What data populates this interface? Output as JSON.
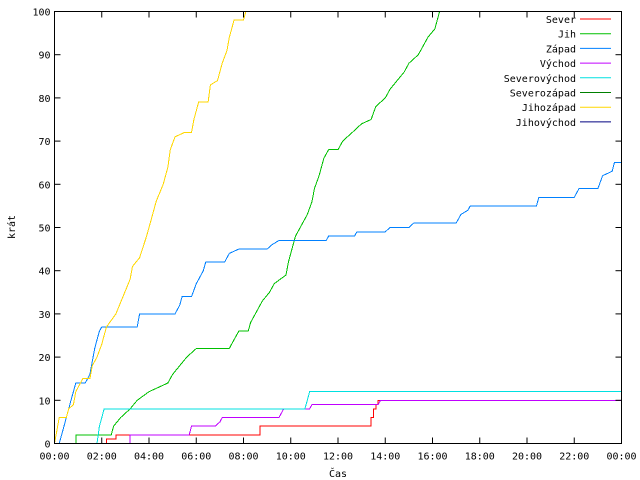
{
  "chart_data": {
    "type": "line",
    "title": "",
    "xlabel": "Čas",
    "ylabel": "krát",
    "xlim": [
      0,
      24
    ],
    "ylim": [
      0,
      100
    ],
    "x_unit": "hours",
    "x_ticks": [
      {
        "value": 0,
        "label": "00:00"
      },
      {
        "value": 2,
        "label": "02:00"
      },
      {
        "value": 4,
        "label": "04:00"
      },
      {
        "value": 6,
        "label": "06:00"
      },
      {
        "value": 8,
        "label": "08:00"
      },
      {
        "value": 10,
        "label": "10:00"
      },
      {
        "value": 12,
        "label": "12:00"
      },
      {
        "value": 14,
        "label": "14:00"
      },
      {
        "value": 16,
        "label": "16:00"
      },
      {
        "value": 18,
        "label": "18:00"
      },
      {
        "value": 20,
        "label": "20:00"
      },
      {
        "value": 22,
        "label": "22:00"
      },
      {
        "value": 24,
        "label": "00:00"
      }
    ],
    "y_ticks": [
      0,
      10,
      20,
      30,
      40,
      50,
      60,
      70,
      80,
      90,
      100
    ],
    "grid": false,
    "legend_position": "top-right",
    "step": true,
    "series": [
      {
        "name": "Sever",
        "color": "#ff0000",
        "points": [
          [
            2.2,
            0
          ],
          [
            2.2,
            1
          ],
          [
            2.6,
            1
          ],
          [
            2.6,
            2
          ],
          [
            8.7,
            2
          ],
          [
            8.7,
            4
          ],
          [
            13.4,
            4
          ],
          [
            13.4,
            6
          ],
          [
            13.5,
            6
          ],
          [
            13.5,
            8
          ],
          [
            13.6,
            8
          ],
          [
            13.6,
            9
          ],
          [
            13.7,
            9
          ],
          [
            13.7,
            10
          ],
          [
            24,
            10
          ]
        ]
      },
      {
        "name": "Jih",
        "color": "#00c000",
        "points": [
          [
            0.9,
            0
          ],
          [
            0.9,
            2
          ],
          [
            2.4,
            2
          ],
          [
            2.5,
            4
          ],
          [
            2.8,
            6
          ],
          [
            3.2,
            8
          ],
          [
            3.5,
            10
          ],
          [
            4.0,
            12
          ],
          [
            4.8,
            14
          ],
          [
            5.0,
            16
          ],
          [
            5.3,
            18
          ],
          [
            5.6,
            20
          ],
          [
            6.0,
            22
          ],
          [
            7.4,
            22
          ],
          [
            7.6,
            24
          ],
          [
            7.8,
            26
          ],
          [
            8.2,
            26
          ],
          [
            8.3,
            28
          ],
          [
            8.5,
            30
          ],
          [
            8.8,
            33
          ],
          [
            9.1,
            35
          ],
          [
            9.3,
            37
          ],
          [
            9.8,
            39
          ],
          [
            9.9,
            42
          ],
          [
            10.1,
            46
          ],
          [
            10.2,
            48
          ],
          [
            10.4,
            50
          ],
          [
            10.7,
            53
          ],
          [
            10.9,
            56
          ],
          [
            11.0,
            59
          ],
          [
            11.2,
            62
          ],
          [
            11.4,
            66
          ],
          [
            11.6,
            68
          ],
          [
            12.0,
            68
          ],
          [
            12.2,
            70
          ],
          [
            12.6,
            72
          ],
          [
            13.0,
            74
          ],
          [
            13.4,
            75
          ],
          [
            13.6,
            78
          ],
          [
            14.0,
            80
          ],
          [
            14.2,
            82
          ],
          [
            14.5,
            84
          ],
          [
            14.8,
            86
          ],
          [
            15.0,
            88
          ],
          [
            15.4,
            90
          ],
          [
            15.6,
            92
          ],
          [
            15.8,
            94
          ],
          [
            16.1,
            96
          ],
          [
            16.3,
            100
          ]
        ]
      },
      {
        "name": "Západ",
        "color": "#0080ff",
        "points": [
          [
            0.2,
            0
          ],
          [
            0.3,
            2
          ],
          [
            0.4,
            4
          ],
          [
            0.5,
            6
          ],
          [
            0.6,
            8
          ],
          [
            0.7,
            10
          ],
          [
            0.8,
            12
          ],
          [
            0.9,
            14
          ],
          [
            1.3,
            14
          ],
          [
            1.5,
            16
          ],
          [
            1.6,
            19
          ],
          [
            1.7,
            22
          ],
          [
            1.8,
            24
          ],
          [
            1.9,
            26
          ],
          [
            2.0,
            27
          ],
          [
            3.5,
            27
          ],
          [
            3.6,
            30
          ],
          [
            5.1,
            30
          ],
          [
            5.3,
            32
          ],
          [
            5.4,
            34
          ],
          [
            5.8,
            34
          ],
          [
            6.0,
            37
          ],
          [
            6.3,
            40
          ],
          [
            6.4,
            42
          ],
          [
            7.2,
            42
          ],
          [
            7.4,
            44
          ],
          [
            7.8,
            45
          ],
          [
            9.0,
            45
          ],
          [
            9.2,
            46
          ],
          [
            9.5,
            47
          ],
          [
            11.5,
            47
          ],
          [
            11.6,
            48
          ],
          [
            12.7,
            48
          ],
          [
            12.8,
            49
          ],
          [
            14.0,
            49
          ],
          [
            14.2,
            50
          ],
          [
            15.0,
            50
          ],
          [
            15.2,
            51
          ],
          [
            17.0,
            51
          ],
          [
            17.2,
            53
          ],
          [
            17.5,
            54
          ],
          [
            17.6,
            55
          ],
          [
            20.4,
            55
          ],
          [
            20.5,
            57
          ],
          [
            22.0,
            57
          ],
          [
            22.2,
            59
          ],
          [
            23.0,
            59
          ],
          [
            23.2,
            62
          ],
          [
            23.6,
            63
          ],
          [
            23.7,
            65
          ],
          [
            24,
            65
          ]
        ]
      },
      {
        "name": "Východ",
        "color": "#c000ff",
        "points": [
          [
            3.2,
            0
          ],
          [
            3.2,
            2
          ],
          [
            5.7,
            2
          ],
          [
            5.8,
            4
          ],
          [
            6.8,
            4
          ],
          [
            7.0,
            5
          ],
          [
            7.1,
            6
          ],
          [
            9.5,
            6
          ],
          [
            9.7,
            8
          ],
          [
            10.8,
            8
          ],
          [
            10.9,
            9
          ],
          [
            13.7,
            9
          ],
          [
            13.8,
            10
          ],
          [
            24,
            10
          ]
        ]
      },
      {
        "name": "Severovýchod",
        "color": "#00e0e0",
        "points": [
          [
            1.8,
            0
          ],
          [
            1.9,
            4
          ],
          [
            2.0,
            6
          ],
          [
            2.1,
            8
          ],
          [
            10.6,
            8
          ],
          [
            10.7,
            10
          ],
          [
            10.8,
            12
          ],
          [
            24,
            12
          ]
        ]
      },
      {
        "name": "Severozápad",
        "color": "#008000",
        "points": []
      },
      {
        "name": "Jihozápad",
        "color": "#ffd700",
        "points": [
          [
            0,
            0
          ],
          [
            0.1,
            3
          ],
          [
            0.2,
            6
          ],
          [
            0.5,
            6
          ],
          [
            0.6,
            8
          ],
          [
            0.8,
            9
          ],
          [
            0.9,
            12
          ],
          [
            1.0,
            13
          ],
          [
            1.2,
            15
          ],
          [
            1.5,
            15
          ],
          [
            1.6,
            18
          ],
          [
            1.8,
            20
          ],
          [
            2.0,
            23
          ],
          [
            2.1,
            25
          ],
          [
            2.2,
            27
          ],
          [
            2.6,
            30
          ],
          [
            2.9,
            34
          ],
          [
            3.2,
            38
          ],
          [
            3.3,
            41
          ],
          [
            3.6,
            43
          ],
          [
            3.9,
            48
          ],
          [
            4.1,
            52
          ],
          [
            4.3,
            56
          ],
          [
            4.6,
            60
          ],
          [
            4.8,
            64
          ],
          [
            4.9,
            68
          ],
          [
            5.1,
            71
          ],
          [
            5.5,
            72
          ],
          [
            5.8,
            72
          ],
          [
            5.9,
            75
          ],
          [
            6.1,
            79
          ],
          [
            6.5,
            79
          ],
          [
            6.6,
            83
          ],
          [
            6.9,
            84
          ],
          [
            7.1,
            88
          ],
          [
            7.3,
            91
          ],
          [
            7.4,
            94
          ],
          [
            7.5,
            96
          ],
          [
            7.6,
            98
          ],
          [
            8.0,
            98
          ],
          [
            8.1,
            100
          ]
        ]
      },
      {
        "name": "Jihovýchod",
        "color": "#000080",
        "points": []
      }
    ]
  }
}
